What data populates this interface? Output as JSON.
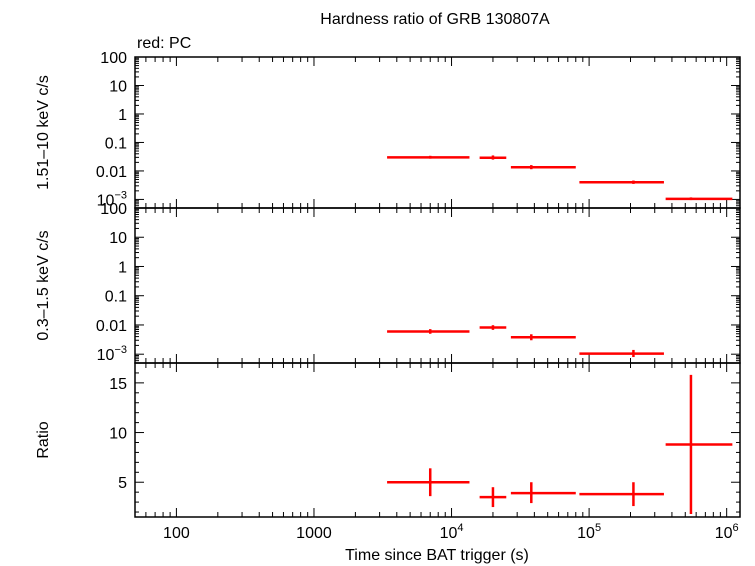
{
  "chart_data": {
    "type": "scatter",
    "title": "Hardness ratio of GRB 130807A",
    "subtitle": "red: PC",
    "xlabel": "Time since BAT trigger (s)",
    "x_scale": "log",
    "xlim": [
      50,
      1250000
    ],
    "x_ticks": [
      {
        "v": 100,
        "label": "100"
      },
      {
        "v": 1000,
        "label": "1000"
      },
      {
        "v": 10000,
        "label": "10",
        "exp": "4"
      },
      {
        "v": 100000,
        "label": "10",
        "exp": "5"
      },
      {
        "v": 1000000,
        "label": "10",
        "exp": "6"
      }
    ],
    "color": "#ff0000",
    "panels": [
      {
        "key": "hard",
        "ylabel": "1.51–10 keV c/s",
        "y_scale": "log",
        "ylim": [
          0.0005,
          100
        ],
        "y_ticks": [
          {
            "v": 100,
            "label": "100"
          },
          {
            "v": 10,
            "label": "10"
          },
          {
            "v": 1,
            "label": "1"
          },
          {
            "v": 0.1,
            "label": "0.1"
          },
          {
            "v": 0.01,
            "label": "0.01"
          },
          {
            "v": 0.001,
            "label": "10",
            "exp": "−3"
          }
        ],
        "points": [
          {
            "x": 7000,
            "xlo": 3400,
            "xhi": 13500,
            "y": 0.03,
            "ylo": 0.027,
            "yhi": 0.034
          },
          {
            "x": 20000,
            "xlo": 16000,
            "xhi": 25000,
            "y": 0.029,
            "ylo": 0.025,
            "yhi": 0.035
          },
          {
            "x": 38000,
            "xlo": 27000,
            "xhi": 80000,
            "y": 0.0135,
            "ylo": 0.0115,
            "yhi": 0.016
          },
          {
            "x": 210000,
            "xlo": 85000,
            "xhi": 350000,
            "y": 0.004,
            "ylo": 0.0035,
            "yhi": 0.0046
          },
          {
            "x": 550000,
            "xlo": 360000,
            "xhi": 1100000,
            "y": 0.00105,
            "ylo": 0.00095,
            "yhi": 0.00118
          }
        ]
      },
      {
        "key": "soft",
        "ylabel": "0.3–1.5 keV c/s",
        "y_scale": "log",
        "ylim": [
          0.0005,
          100
        ],
        "y_ticks": [
          {
            "v": 100,
            "label": "100"
          },
          {
            "v": 10,
            "label": "10"
          },
          {
            "v": 1,
            "label": "1"
          },
          {
            "v": 0.1,
            "label": "0.1"
          },
          {
            "v": 0.01,
            "label": "0.01"
          },
          {
            "v": 0.001,
            "label": "10",
            "exp": "−3"
          }
        ],
        "points": [
          {
            "x": 7000,
            "xlo": 3400,
            "xhi": 13500,
            "y": 0.006,
            "ylo": 0.005,
            "yhi": 0.0072
          },
          {
            "x": 20000,
            "xlo": 16000,
            "xhi": 25000,
            "y": 0.0082,
            "ylo": 0.0068,
            "yhi": 0.0098
          },
          {
            "x": 38000,
            "xlo": 27000,
            "xhi": 80000,
            "y": 0.0038,
            "ylo": 0.003,
            "yhi": 0.0048
          },
          {
            "x": 210000,
            "xlo": 85000,
            "xhi": 350000,
            "y": 0.00105,
            "ylo": 0.0008,
            "yhi": 0.0014
          }
        ]
      },
      {
        "key": "ratio",
        "ylabel": "Ratio",
        "y_scale": "linear",
        "ylim": [
          1.5,
          17
        ],
        "y_ticks": [
          {
            "v": 5,
            "label": "5"
          },
          {
            "v": 10,
            "label": "10"
          },
          {
            "v": 15,
            "label": "15"
          }
        ],
        "y_minor_step": 1,
        "points": [
          {
            "x": 7000,
            "xlo": 3400,
            "xhi": 13500,
            "y": 5.0,
            "ylo": 3.6,
            "yhi": 6.4
          },
          {
            "x": 20000,
            "xlo": 16000,
            "xhi": 25000,
            "y": 3.5,
            "ylo": 2.5,
            "yhi": 4.5
          },
          {
            "x": 38000,
            "xlo": 27000,
            "xhi": 80000,
            "y": 3.9,
            "ylo": 2.9,
            "yhi": 5.0
          },
          {
            "x": 210000,
            "xlo": 85000,
            "xhi": 350000,
            "y": 3.8,
            "ylo": 2.6,
            "yhi": 5.0
          },
          {
            "x": 550000,
            "xlo": 360000,
            "xhi": 1100000,
            "y": 8.8,
            "ylo": 1.8,
            "yhi": 15.8
          }
        ]
      }
    ]
  }
}
